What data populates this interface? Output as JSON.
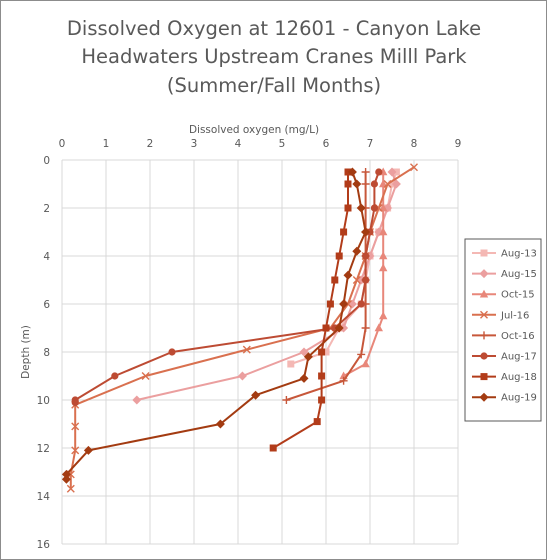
{
  "chart_data": {
    "type": "line",
    "title_lines": [
      "Dissolved Oxygen at 12601 - Canyon Lake",
      "Headwaters Upstream Cranes Milll Park",
      "(Summer/Fall Months)"
    ],
    "xlabel": "Dissolved oxygen (mg/L)",
    "ylabel": "Depth (m)",
    "x_axis_position": "top",
    "y_axis_reversed": true,
    "xlim": [
      0,
      9
    ],
    "ylim": [
      0,
      16
    ],
    "x_ticks": [
      "0",
      "1",
      "2",
      "3",
      "4",
      "5",
      "6",
      "7",
      "8",
      "9"
    ],
    "y_ticks": [
      "0",
      "2",
      "4",
      "6",
      "8",
      "10",
      "12",
      "14",
      "16"
    ],
    "grid": true,
    "legend_position": "right",
    "series": [
      {
        "name": "Aug-13",
        "color": "#f4b8b4",
        "marker": "square",
        "points": [
          [
            7.6,
            0.5
          ],
          [
            7.5,
            1
          ],
          [
            7.4,
            2
          ],
          [
            7.2,
            3
          ],
          [
            7.0,
            4
          ],
          [
            6.9,
            5
          ],
          [
            6.8,
            6
          ],
          [
            6.3,
            7
          ],
          [
            6.0,
            8
          ],
          [
            5.2,
            8.5
          ]
        ]
      },
      {
        "name": "Aug-15",
        "color": "#eb9f9f",
        "marker": "diamond",
        "points": [
          [
            7.5,
            0.5
          ],
          [
            7.6,
            1
          ],
          [
            7.4,
            2
          ],
          [
            7.2,
            3
          ],
          [
            7.0,
            4
          ],
          [
            6.8,
            5
          ],
          [
            6.6,
            6
          ],
          [
            6.4,
            7
          ],
          [
            5.5,
            8
          ],
          [
            4.1,
            9
          ],
          [
            1.7,
            10
          ]
        ]
      },
      {
        "name": "Oct-15",
        "color": "#e8877a",
        "marker": "triangle",
        "points": [
          [
            7.3,
            0.5
          ],
          [
            7.3,
            1
          ],
          [
            7.3,
            2
          ],
          [
            7.3,
            3
          ],
          [
            7.3,
            4
          ],
          [
            7.3,
            4.5
          ],
          [
            7.3,
            6.5
          ],
          [
            7.2,
            7
          ],
          [
            6.9,
            8.5
          ],
          [
            6.4,
            9
          ]
        ]
      },
      {
        "name": "Jul-16",
        "color": "#d9704f",
        "marker": "x",
        "points": [
          [
            8.0,
            0.3
          ],
          [
            7.4,
            1
          ],
          [
            7.2,
            2
          ],
          [
            7.0,
            3
          ],
          [
            6.9,
            4
          ],
          [
            6.7,
            5
          ],
          [
            6.5,
            6
          ],
          [
            6.1,
            7
          ],
          [
            4.2,
            7.9
          ],
          [
            1.9,
            9
          ],
          [
            0.3,
            10.2
          ],
          [
            0.3,
            11.1
          ],
          [
            0.3,
            12.1
          ],
          [
            0.2,
            13.1
          ],
          [
            0.2,
            13.7
          ]
        ]
      },
      {
        "name": "Oct-16",
        "color": "#c7573a",
        "marker": "plus",
        "points": [
          [
            6.9,
            0.5
          ],
          [
            6.9,
            1
          ],
          [
            6.9,
            2
          ],
          [
            6.9,
            3
          ],
          [
            6.9,
            4
          ],
          [
            6.9,
            5
          ],
          [
            6.9,
            6
          ],
          [
            6.9,
            7
          ],
          [
            6.8,
            8.1
          ],
          [
            6.4,
            9.2
          ],
          [
            5.1,
            10
          ]
        ]
      },
      {
        "name": "Aug-17",
        "color": "#bd4b33",
        "marker": "circle",
        "points": [
          [
            7.2,
            0.5
          ],
          [
            7.1,
            1
          ],
          [
            7.1,
            2
          ],
          [
            7.0,
            3
          ],
          [
            6.9,
            4
          ],
          [
            6.9,
            5
          ],
          [
            6.8,
            6
          ],
          [
            6.2,
            7
          ],
          [
            2.5,
            8
          ],
          [
            1.2,
            9
          ],
          [
            0.3,
            10
          ],
          [
            0.3,
            10.1
          ]
        ]
      },
      {
        "name": "Aug-18",
        "color": "#b23c1a",
        "marker": "square",
        "points": [
          [
            6.5,
            0.5
          ],
          [
            6.5,
            1
          ],
          [
            6.5,
            2
          ],
          [
            6.4,
            3
          ],
          [
            6.3,
            4
          ],
          [
            6.2,
            5
          ],
          [
            6.1,
            6
          ],
          [
            6.0,
            7
          ],
          [
            5.9,
            8
          ],
          [
            5.9,
            9
          ],
          [
            5.9,
            10
          ],
          [
            5.8,
            10.9
          ],
          [
            4.8,
            12
          ]
        ]
      },
      {
        "name": "Aug-19",
        "color": "#a33b11",
        "marker": "diamond",
        "points": [
          [
            6.6,
            0.5
          ],
          [
            6.7,
            1
          ],
          [
            6.8,
            2
          ],
          [
            6.9,
            3
          ],
          [
            6.7,
            3.8
          ],
          [
            6.5,
            4.8
          ],
          [
            6.4,
            6
          ],
          [
            6.3,
            7
          ],
          [
            5.6,
            8.2
          ],
          [
            5.5,
            9.1
          ],
          [
            4.4,
            9.8
          ],
          [
            3.6,
            11
          ],
          [
            0.6,
            12.1
          ],
          [
            0.1,
            13.1
          ],
          [
            0.1,
            13.3
          ]
        ]
      }
    ]
  }
}
